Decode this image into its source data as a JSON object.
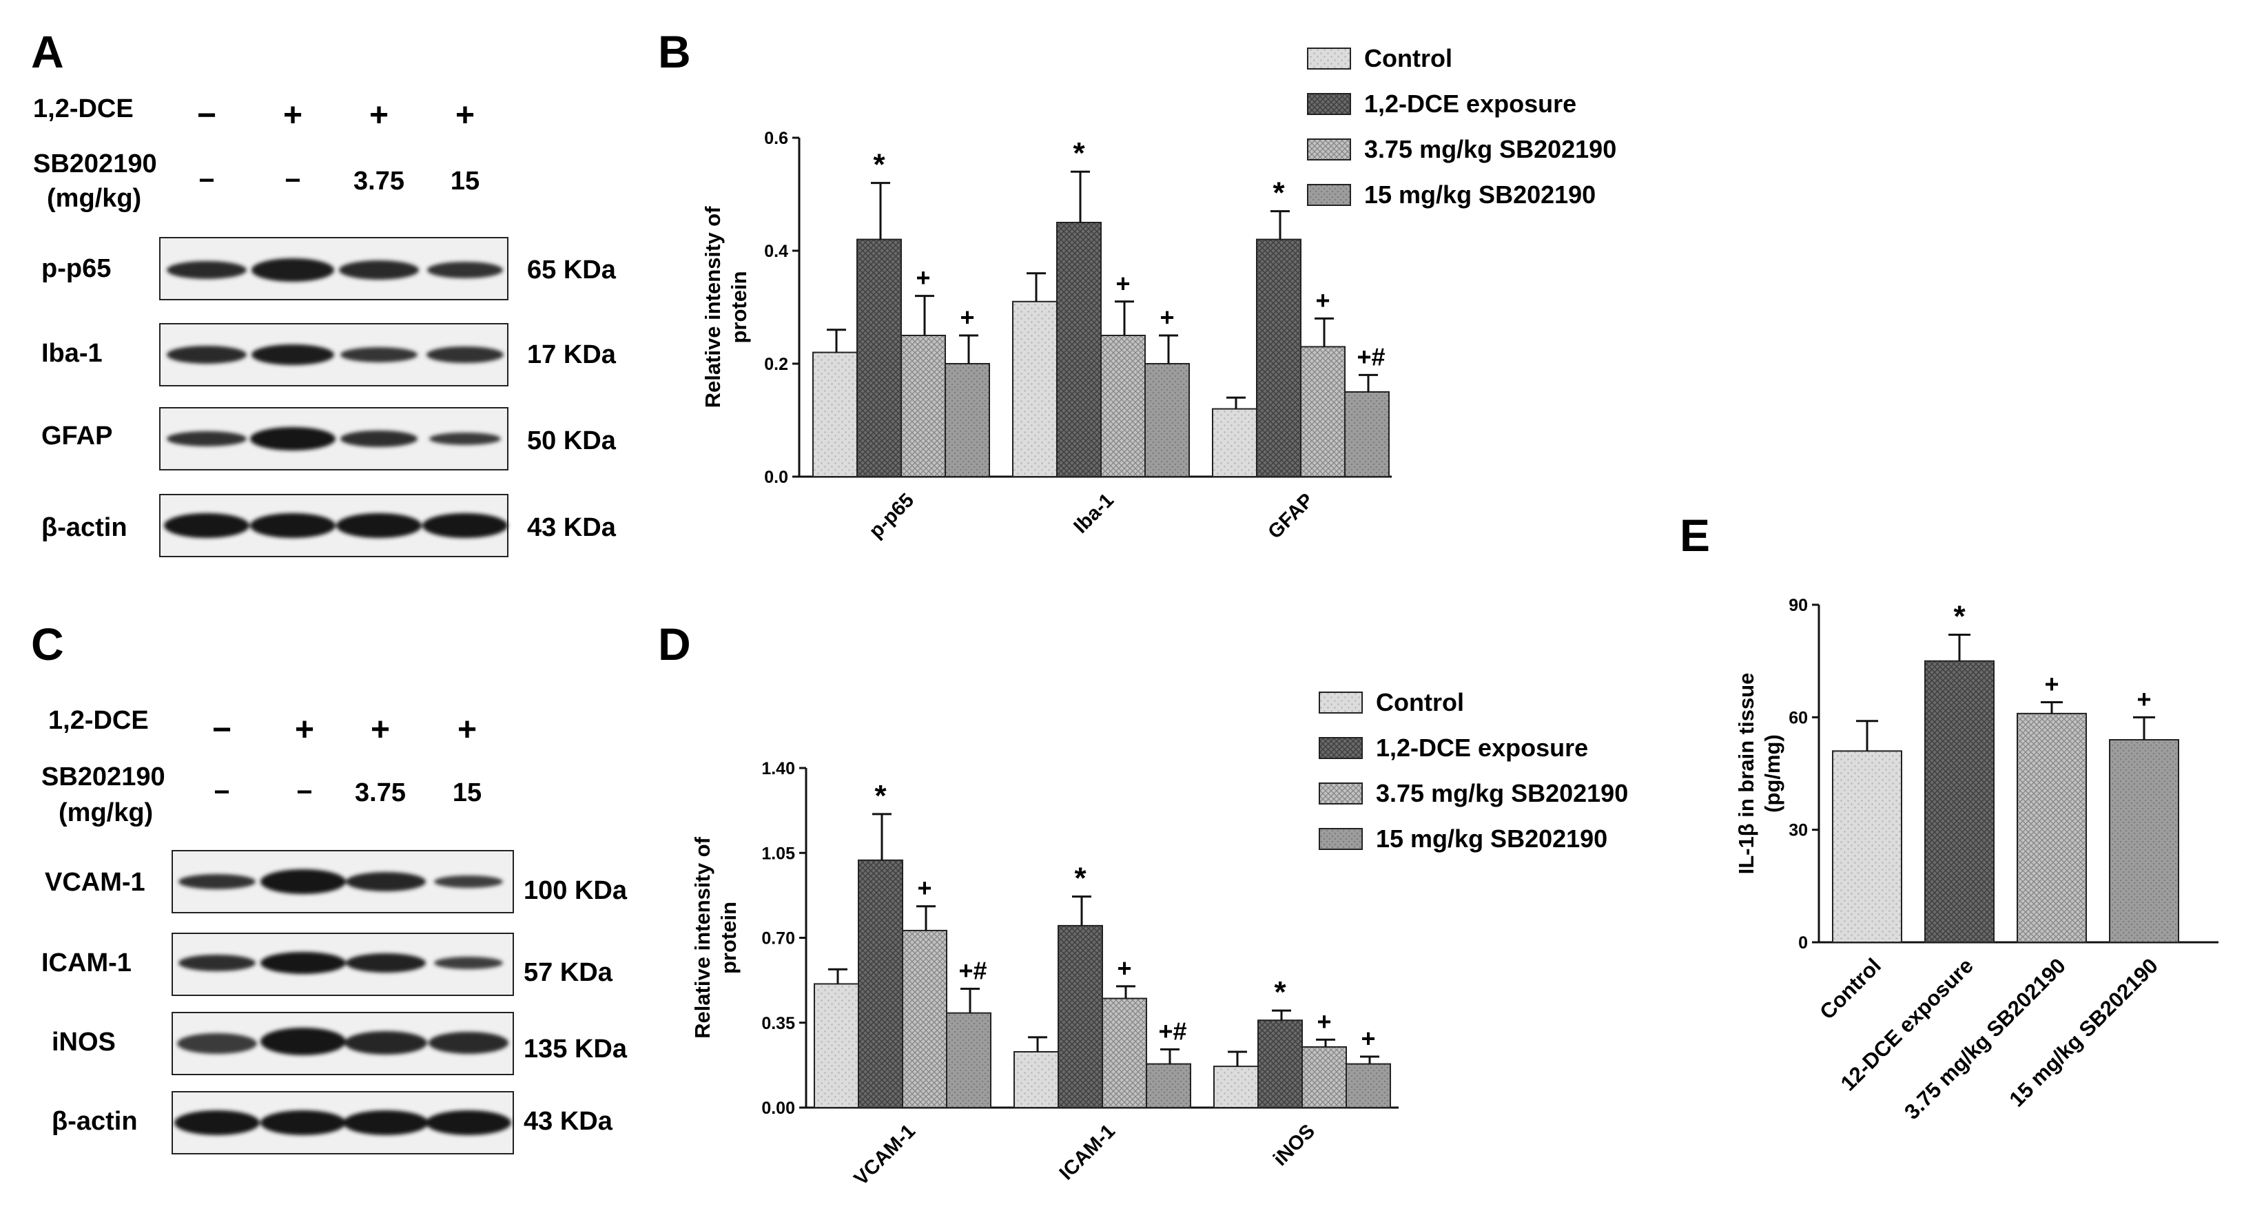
{
  "panels": {
    "A": {
      "letter": "A",
      "row_labels": [
        "1,2-DCE",
        "SB202190",
        "(mg/kg)"
      ],
      "dce_signs": [
        "−",
        "+",
        "+",
        "+"
      ],
      "sb_doses": [
        "−",
        "−",
        "3.75",
        "15"
      ],
      "blots": [
        {
          "name": "p-p65",
          "size": "65 KDa"
        },
        {
          "name": "Iba-1",
          "size": "17 KDa"
        },
        {
          "name": "GFAP",
          "size": "50 KDa"
        },
        {
          "name": "β-actin",
          "size": "43 KDa"
        }
      ]
    },
    "C": {
      "letter": "C",
      "row_labels": [
        "1,2-DCE",
        "SB202190",
        "(mg/kg)"
      ],
      "dce_signs": [
        "−",
        "+",
        "+",
        "+"
      ],
      "sb_doses": [
        "−",
        "−",
        "3.75",
        "15"
      ],
      "blots": [
        {
          "name": "VCAM-1",
          "size": "100 KDa"
        },
        {
          "name": "ICAM-1",
          "size": "57 KDa"
        },
        {
          "name": "iNOS",
          "size": "135 KDa"
        },
        {
          "name": "β-actin",
          "size": "43 KDa"
        }
      ]
    }
  },
  "chart_data": [
    {
      "panel": "B",
      "type": "bar",
      "title": "",
      "ylabel": "Relative intensity of protein",
      "ylabel_lines": [
        "Relative intensity of",
        "protein"
      ],
      "ylim": [
        0,
        0.6
      ],
      "yticks": [
        0.0,
        0.2,
        0.4,
        0.6
      ],
      "ytick_labels": [
        "0.0",
        "0.2",
        "0.4",
        "0.6"
      ],
      "categories": [
        "p-p65",
        "Iba-1",
        "GFAP"
      ],
      "series": [
        {
          "name": "Control",
          "values": [
            0.22,
            0.31,
            0.12
          ],
          "errors": [
            0.04,
            0.05,
            0.02
          ],
          "marks": [
            "",
            "",
            ""
          ]
        },
        {
          "name": "1,2-DCE exposure",
          "values": [
            0.42,
            0.45,
            0.42
          ],
          "errors": [
            0.1,
            0.09,
            0.05
          ],
          "marks": [
            "*",
            "*",
            "*"
          ]
        },
        {
          "name": "3.75 mg/kg SB202190",
          "values": [
            0.25,
            0.25,
            0.23
          ],
          "errors": [
            0.07,
            0.06,
            0.05
          ],
          "marks": [
            "+",
            "+",
            "+"
          ]
        },
        {
          "name": "15 mg/kg SB202190",
          "values": [
            0.2,
            0.2,
            0.15
          ],
          "errors": [
            0.05,
            0.05,
            0.03
          ],
          "marks": [
            "+",
            "+",
            "+#"
          ]
        }
      ]
    },
    {
      "panel": "D",
      "type": "bar",
      "title": "",
      "ylabel": "Relative intensity of protein",
      "ylabel_lines": [
        "Relative intensity of",
        "protein"
      ],
      "ylim": [
        0,
        1.4
      ],
      "yticks": [
        0.0,
        0.35,
        0.7,
        1.05,
        1.4
      ],
      "ytick_labels": [
        "0.00",
        "0.35",
        "0.70",
        "1.05",
        "1.40"
      ],
      "categories": [
        "VCAM-1",
        "ICAM-1",
        "iNOS"
      ],
      "series": [
        {
          "name": "Control",
          "values": [
            0.51,
            0.23,
            0.17
          ],
          "errors": [
            0.06,
            0.06,
            0.06
          ],
          "marks": [
            "",
            "",
            ""
          ]
        },
        {
          "name": "1,2-DCE exposure",
          "values": [
            1.02,
            0.75,
            0.36
          ],
          "errors": [
            0.19,
            0.12,
            0.04
          ],
          "marks": [
            "*",
            "*",
            "*"
          ]
        },
        {
          "name": "3.75 mg/kg SB202190",
          "values": [
            0.73,
            0.45,
            0.25
          ],
          "errors": [
            0.1,
            0.05,
            0.03
          ],
          "marks": [
            "+",
            "+",
            "+"
          ]
        },
        {
          "name": "15 mg/kg SB202190",
          "values": [
            0.39,
            0.18,
            0.18
          ],
          "errors": [
            0.1,
            0.06,
            0.03
          ],
          "marks": [
            "+#",
            "+#",
            "+"
          ]
        }
      ]
    },
    {
      "panel": "E",
      "type": "bar",
      "title": "",
      "ylabel": "IL-1β in brain tissue (pg/mg)",
      "ylabel_lines": [
        "IL-1β in brain tissue",
        "(pg/mg)"
      ],
      "ylim": [
        0,
        90
      ],
      "yticks": [
        0,
        30,
        60,
        90
      ],
      "ytick_labels": [
        "0",
        "30",
        "60",
        "90"
      ],
      "categories": [
        "Control",
        "12-DCE exposure",
        "3.75 mg/kg SB202190",
        "15 mg/kg SB202190"
      ],
      "values": [
        51,
        75,
        61,
        54
      ],
      "errors": [
        8,
        7,
        3,
        6
      ],
      "marks": [
        "",
        "*",
        "+",
        "+"
      ]
    }
  ],
  "colors": {
    "control": "#d9d9d9",
    "dce": "#5e5e5e",
    "sb375": "#a8a8a8",
    "sb15": "#8e8e8e",
    "axis": "#111111",
    "blot_bg": "#f2f2f2",
    "band": "#1e1e1e"
  }
}
